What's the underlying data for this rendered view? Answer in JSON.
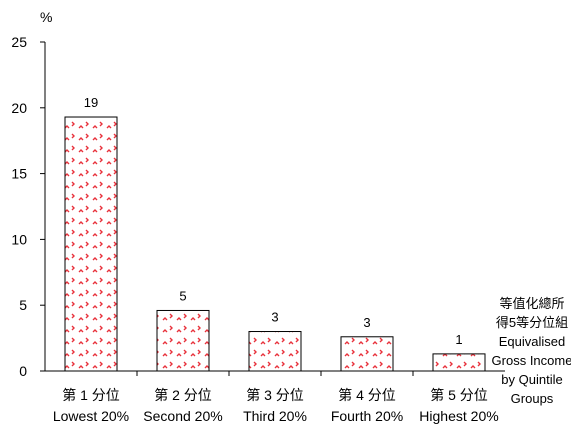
{
  "chart_data": {
    "type": "bar",
    "ylabel": "%",
    "ylim": [
      0,
      25
    ],
    "yticks": [
      0,
      5,
      10,
      15,
      20,
      25
    ],
    "categories": [
      {
        "zh": "第 1 分位",
        "en": "Lowest 20%"
      },
      {
        "zh": "第 2 分位",
        "en": "Second 20%"
      },
      {
        "zh": "第 3 分位",
        "en": "Third 20%"
      },
      {
        "zh": "第 4 分位",
        "en": "Fourth 20%"
      },
      {
        "zh": "第 5 分位",
        "en": "Highest 20%"
      }
    ],
    "values": [
      19.3,
      4.6,
      3.0,
      2.6,
      1.3
    ],
    "data_labels": [
      "19",
      "5",
      "3",
      "3",
      "1"
    ],
    "xlabel_lines": [
      "等值化總所",
      "得5等分位組",
      "Equivalised",
      "Gross Income",
      "by Quintile",
      "Groups"
    ],
    "bar_pattern_color": "#e8323c",
    "bar_edge_color": "#000000",
    "grid": false
  }
}
